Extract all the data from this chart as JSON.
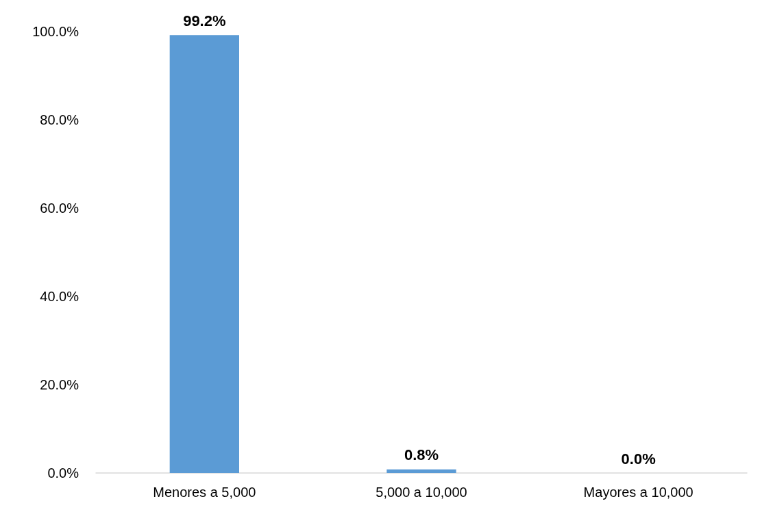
{
  "chart_data": {
    "type": "bar",
    "categories": [
      "Menores a 5,000",
      "5,000 a 10,000",
      "Mayores a 10,000"
    ],
    "values": [
      99.2,
      0.8,
      0.0
    ],
    "value_labels": [
      "99.2%",
      "0.8%",
      "0.0%"
    ],
    "color": "#5b9bd5",
    "ylim": [
      0,
      100
    ],
    "yticks": [
      {
        "value": 0,
        "label": "0.0%"
      },
      {
        "value": 20,
        "label": "20.0%"
      },
      {
        "value": 40,
        "label": "40.0%"
      },
      {
        "value": 60,
        "label": "60.0%"
      },
      {
        "value": 80,
        "label": "80.0%"
      },
      {
        "value": 100,
        "label": "100.0%"
      }
    ],
    "grid": false
  }
}
